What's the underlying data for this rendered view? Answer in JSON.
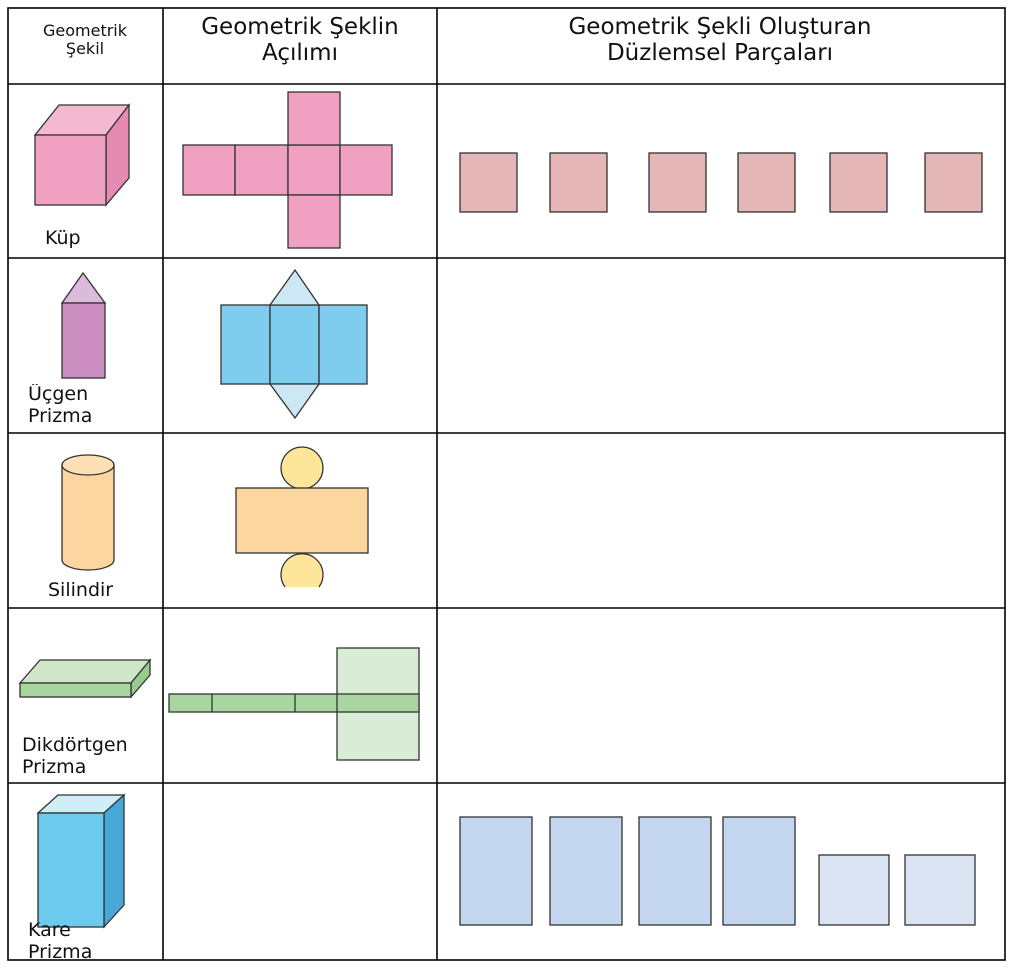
{
  "table": {
    "headers": [
      "Geometrik Şekil",
      "Geometrik Şeklin Açılımı",
      "Geometrik Şekli Oluşturan Düzlemsel Parçaları"
    ],
    "rows": [
      {
        "shape": "Küp"
      },
      {
        "shape": "Üçgen Prizma"
      },
      {
        "shape": "Silindir"
      },
      {
        "shape": "Dikdörtgen Prizma"
      },
      {
        "shape": "Kare Prizma"
      }
    ]
  }
}
